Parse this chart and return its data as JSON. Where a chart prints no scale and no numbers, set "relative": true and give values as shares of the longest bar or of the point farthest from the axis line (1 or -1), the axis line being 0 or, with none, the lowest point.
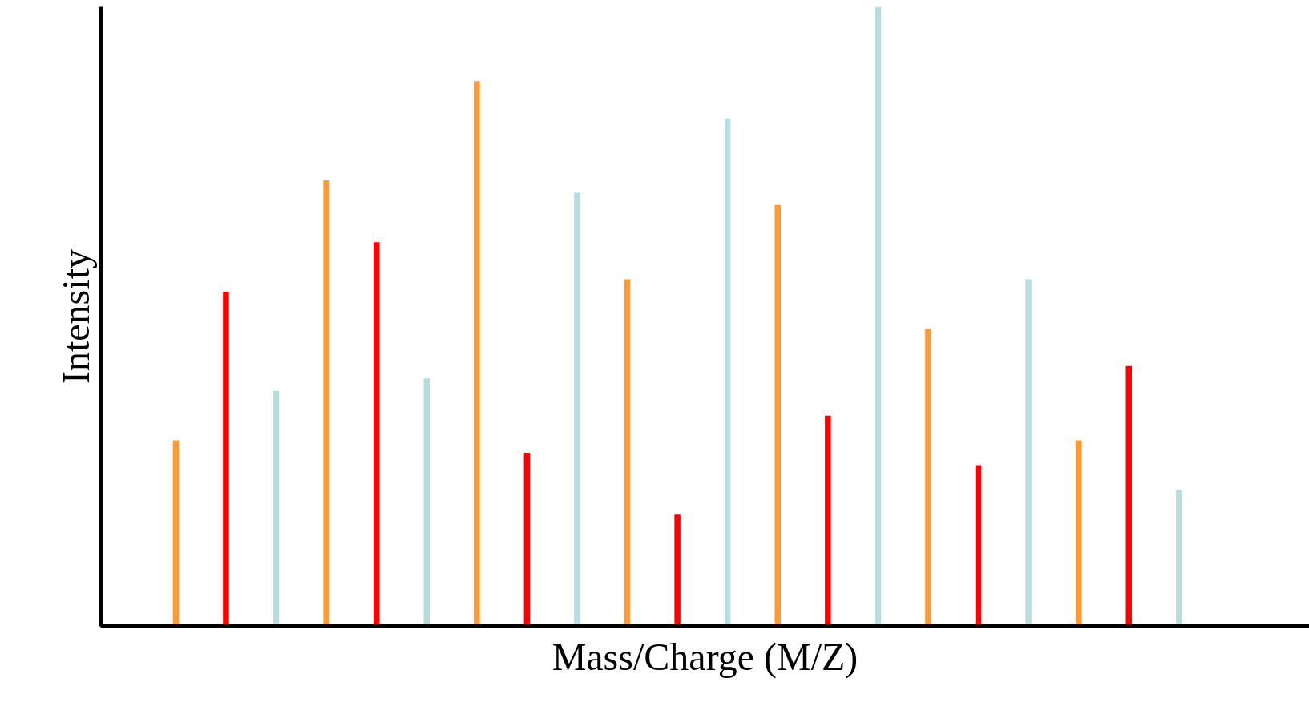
{
  "chart_data": {
    "type": "bar",
    "relative": true,
    "xlabel": "Mass/Charge (M/Z)",
    "ylabel": "Intensity",
    "categories": [
      null,
      null,
      null,
      null,
      null,
      null,
      null,
      null,
      null,
      null,
      null,
      null,
      null,
      null,
      null,
      null,
      null,
      null,
      null,
      null,
      null
    ],
    "values": [
      0.3,
      0.54,
      0.38,
      0.72,
      0.62,
      0.4,
      0.88,
      0.28,
      0.7,
      0.56,
      0.18,
      0.82,
      0.68,
      0.34,
      1,
      0.48,
      0.26,
      0.56,
      0.3,
      0.42,
      0.22
    ],
    "colors": [
      "#ff9933",
      "#ff0000",
      "#b7dde0",
      "#ff9933",
      "#ff0000",
      "#b7dde0",
      "#ff9933",
      "#ff0000",
      "#b7dde0",
      "#ff9933",
      "#ff0000",
      "#b7dde0",
      "#ff9933",
      "#ff0000",
      "#b7dde0",
      "#ff9933",
      "#ff0000",
      "#b7dde0",
      "#ff9933",
      "#ff0000",
      "#b7dde0"
    ]
  }
}
